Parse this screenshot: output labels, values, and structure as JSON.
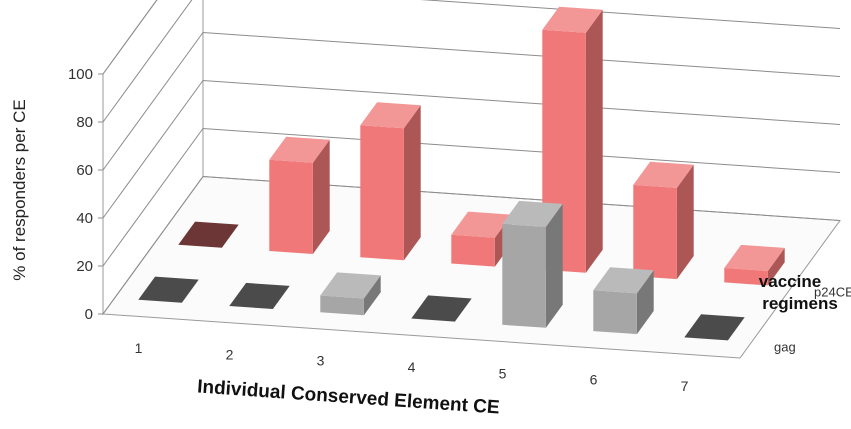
{
  "chart_data": {
    "type": "bar",
    "style": "3d-clustered-depth",
    "title": "",
    "xlabel": "Individual Conserved Element CE",
    "ylabel": "% of responders per CE",
    "zlabel_lines": [
      "vaccine",
      "regimens"
    ],
    "ylim": [
      0,
      100
    ],
    "yticks": [
      0,
      20,
      40,
      60,
      80,
      100
    ],
    "categories": [
      "1",
      "2",
      "3",
      "4",
      "5",
      "6",
      "7"
    ],
    "series": [
      {
        "name": "gag",
        "color": "#a6a6a6",
        "values": [
          0,
          0,
          7,
          0,
          42,
          17,
          0
        ]
      },
      {
        "name": "p24CE",
        "color": "#f07878",
        "values": [
          0,
          38,
          55,
          12,
          100,
          38,
          6
        ]
      }
    ],
    "grid": true
  }
}
